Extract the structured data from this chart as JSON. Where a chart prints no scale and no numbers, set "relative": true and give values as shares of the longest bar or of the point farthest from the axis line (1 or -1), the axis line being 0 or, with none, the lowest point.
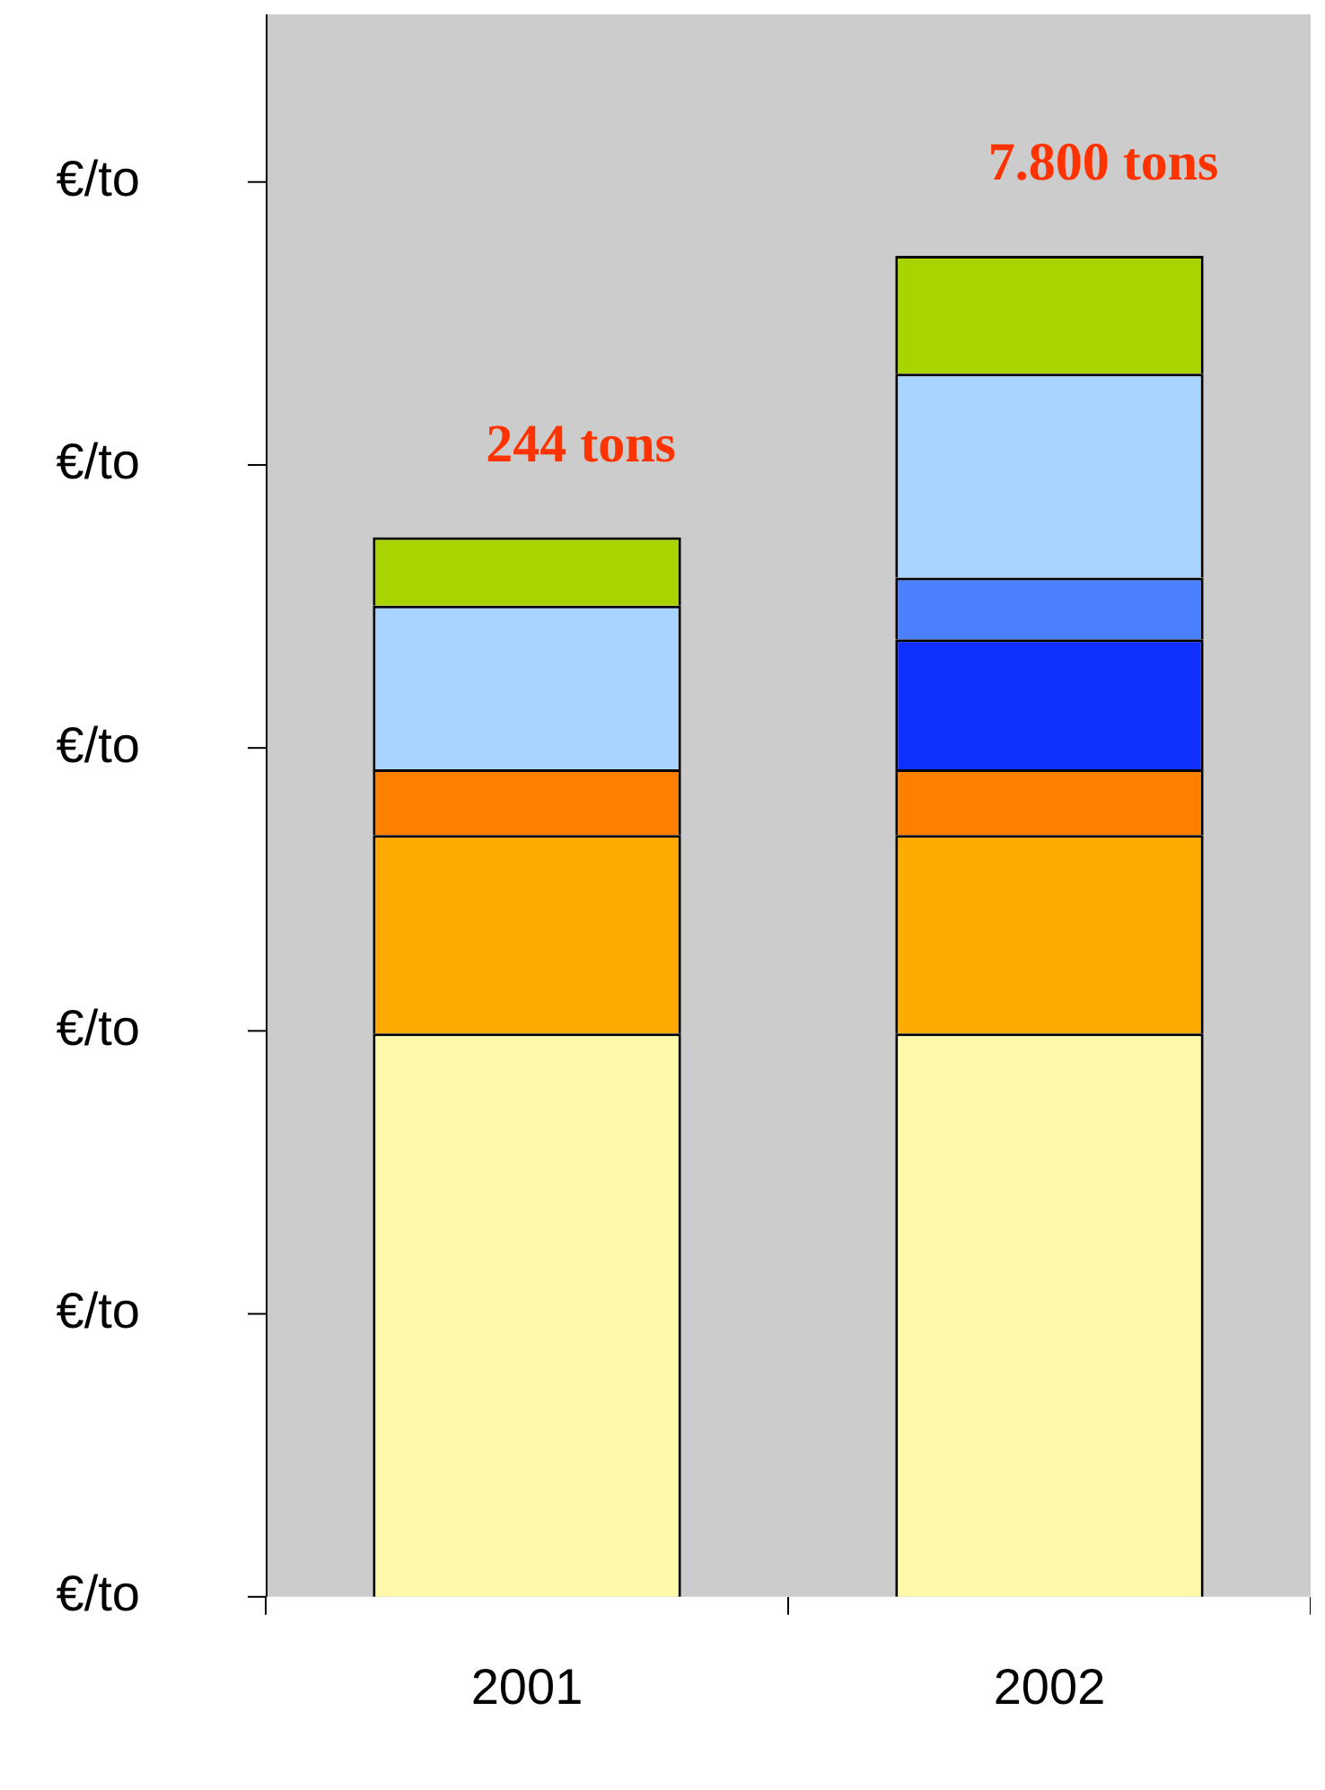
{
  "chart_data": {
    "type": "bar",
    "stacked": true,
    "relative": true,
    "categories": [
      "2001",
      "2002"
    ],
    "series": [
      {
        "color": "#fffaaa",
        "values": [
          0.42,
          0.42
        ]
      },
      {
        "color": "#ffaa00",
        "values": [
          0.148,
          0.148
        ]
      },
      {
        "color": "#ff8000",
        "values": [
          0.049,
          0.049
        ]
      },
      {
        "color": "#1030ff",
        "values": [
          null,
          0.097
        ]
      },
      {
        "color": "#4a80ff",
        "values": [
          null,
          0.046
        ]
      },
      {
        "color": "#a8d4ff",
        "values": [
          0.122,
          0.152
        ]
      },
      {
        "color": "#aad400",
        "values": [
          0.051,
          0.088
        ]
      }
    ],
    "annotations": [
      "€/to",
      "€/to",
      "€/to",
      "€/to",
      "€/to",
      "€/to",
      "244 tons",
      "7.800 tons"
    ],
    "grid": false,
    "legend": false
  }
}
